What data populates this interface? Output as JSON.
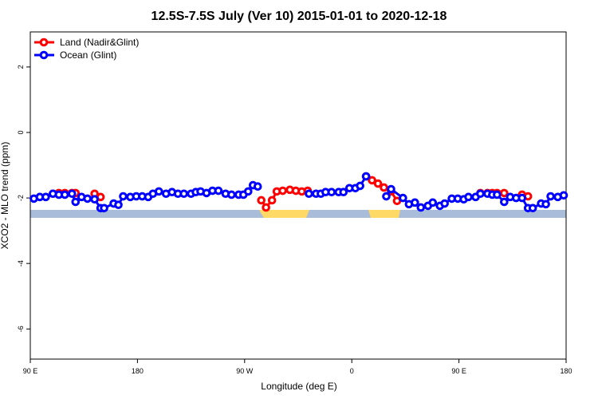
{
  "chart_data": {
    "type": "line",
    "title": "12.5S-7.5S July (Ver 10)   2015-01-01 to 2020-12-18",
    "x_label": "Longitude (deg E)",
    "y_label": "XCO2 - MLO trend (ppm)",
    "xlim": [
      90,
      540
    ],
    "ylim": [
      -6.92,
      3.07
    ],
    "xticks": [
      {
        "value": 90,
        "label": "90 E"
      },
      {
        "value": 180,
        "label": "180"
      },
      {
        "value": 270,
        "label": "90 W"
      },
      {
        "value": 360,
        "label": "0"
      },
      {
        "value": 450,
        "label": "90 E"
      },
      {
        "value": 540,
        "label": "180"
      }
    ],
    "yticks": [
      2,
      0,
      -2,
      -4,
      -6
    ],
    "legend": "top-left",
    "series": [
      {
        "name": "Land (Nadir&Glint)",
        "color": "#ff0000",
        "x": [
          109,
          114,
          119,
          125,
          128,
          135,
          144,
          149,
          200,
          284,
          288,
          293,
          297,
          302,
          308,
          313,
          318,
          323,
          340,
          372,
          377,
          382,
          387,
          393,
          398,
          430,
          468,
          474,
          478,
          482,
          488,
          495,
          503,
          508
        ],
        "values": [
          -1.87,
          -1.85,
          -1.85,
          -1.85,
          -1.85,
          null,
          -1.87,
          -1.97,
          null,
          -2.07,
          -2.29,
          -2.07,
          -1.8,
          -1.78,
          -1.75,
          -1.78,
          -1.8,
          -1.78,
          null,
          -1.34,
          -1.46,
          -1.56,
          -1.68,
          -1.8,
          -2.09,
          null,
          -1.85,
          -1.85,
          -1.85,
          -1.85,
          -1.85,
          null,
          -1.9,
          -1.95
        ]
      },
      {
        "name": "Ocean (Glint)",
        "color": "#0000ff",
        "x": [
          93,
          98,
          103,
          109,
          114,
          119,
          125,
          128,
          133,
          138,
          144,
          149,
          152,
          160,
          164,
          168,
          174,
          179,
          184,
          189,
          193,
          198,
          204,
          209,
          214,
          219,
          225,
          229,
          233,
          238,
          243,
          248,
          254,
          259,
          265,
          269,
          273,
          277,
          281,
          300,
          324,
          330,
          334,
          338,
          343,
          349,
          353,
          358,
          363,
          367,
          372,
          380,
          389,
          393,
          403,
          408,
          413,
          418,
          424,
          428,
          434,
          438,
          444,
          449,
          454,
          458,
          464,
          468,
          474,
          478,
          482,
          488,
          493,
          498,
          503,
          508,
          512,
          519,
          523,
          527,
          533,
          538
        ],
        "values": [
          -2.02,
          -1.97,
          -1.97,
          -1.87,
          -1.9,
          -1.9,
          -1.87,
          -2.12,
          -1.97,
          -2.02,
          -2.04,
          -2.31,
          -2.31,
          -2.17,
          -2.21,
          -1.95,
          -1.97,
          -1.95,
          -1.95,
          -1.97,
          -1.87,
          -1.8,
          -1.87,
          -1.82,
          -1.87,
          -1.87,
          -1.87,
          -1.82,
          -1.8,
          -1.85,
          -1.78,
          -1.78,
          -1.87,
          -1.9,
          -1.9,
          -1.9,
          -1.8,
          -1.61,
          -1.65,
          null,
          -1.87,
          -1.87,
          -1.87,
          -1.82,
          -1.82,
          -1.82,
          -1.82,
          -1.7,
          -1.7,
          -1.63,
          -1.34,
          null,
          -1.95,
          -1.73,
          -2.0,
          -2.19,
          -2.14,
          -2.29,
          -2.24,
          -2.14,
          -2.24,
          -2.17,
          -2.02,
          -2.02,
          -2.04,
          -1.97,
          -1.97,
          -1.87,
          -1.87,
          -1.9,
          -1.9,
          -2.12,
          -1.97,
          -2.0,
          -2.0,
          -2.31,
          -2.31,
          -2.17,
          -2.19,
          -1.95,
          -1.97,
          -1.92
        ]
      }
    ]
  }
}
